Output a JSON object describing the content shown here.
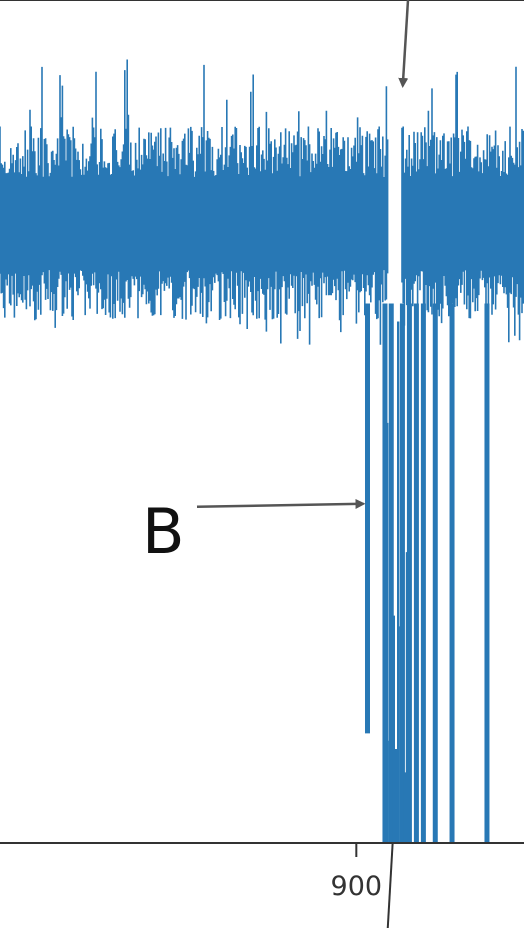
{
  "chart_data": {
    "type": "line",
    "title": "",
    "xlabel": "",
    "ylabel": "",
    "series_color": "#2878b5",
    "axis_color": "#333333",
    "annotation_color": "#555555",
    "x_ticks": [
      900
    ],
    "x_tick_labels": [
      "900"
    ],
    "xlim": [
      849,
      924
    ],
    "ylim": [
      0,
      1
    ],
    "grid": false,
    "legend": "none",
    "noise_band": {
      "baseline": 0.72,
      "lower": 0.62,
      "upper": 0.85,
      "peak_max": 0.93
    },
    "gap": {
      "x_start": 904.6,
      "x_end": 906.4
    },
    "series": [
      {
        "values_note": "",
        "dips": [
          {
            "x": 901.6,
            "y": 0.13
          },
          {
            "x": 904.1,
            "y": 0.0
          },
          {
            "x": 905.0,
            "y": 0.0
          },
          {
            "x": 906.6,
            "y": 0.0
          },
          {
            "x": 907.6,
            "y": 0.0
          },
          {
            "x": 908.6,
            "y": 0.0
          },
          {
            "x": 909.6,
            "y": 0.0
          },
          {
            "x": 911.3,
            "y": 0.0
          },
          {
            "x": 913.7,
            "y": 0.0
          },
          {
            "x": 918.7,
            "y": 0.0
          }
        ]
      }
    ],
    "annotations": [
      {
        "label": "B",
        "target": {
          "x": 901.6,
          "y": 0.4
        }
      },
      {
        "label": "",
        "target": {
          "x": 905.5,
          "y": 0.98
        }
      }
    ]
  }
}
